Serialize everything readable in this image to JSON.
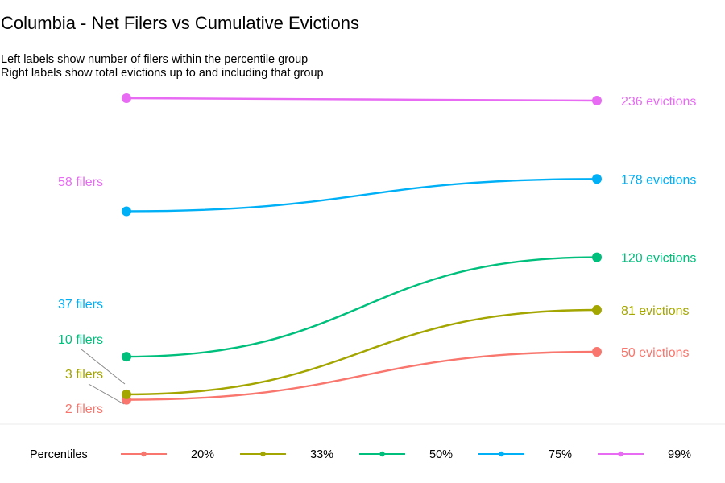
{
  "chart_data": {
    "type": "line",
    "title": "Columbia - Net Filers vs Cumulative Evictions",
    "subtitle": [
      "Left labels show number of filers within the percentile group",
      "Right labels show total evictions up to and including that group"
    ],
    "xlabel": "",
    "ylabel": "",
    "grid": false,
    "legend_position": "bottom",
    "legend_title": "Percentiles",
    "series": [
      {
        "name": "20%",
        "color": "#F8766D",
        "filers": 2,
        "evictions": 50,
        "left_label": "2 filers",
        "right_label": "50 evictions"
      },
      {
        "name": "33%",
        "color": "#A3A500",
        "filers": 3,
        "evictions": 81,
        "left_label": "3 filers",
        "right_label": "81 evictions"
      },
      {
        "name": "50%",
        "color": "#00BF7D",
        "filers": 10,
        "evictions": 120,
        "left_label": "10 filers",
        "right_label": "120 evictions"
      },
      {
        "name": "75%",
        "color": "#00B0F6",
        "filers": 37,
        "evictions": 178,
        "left_label": "37 filers",
        "right_label": "178 evictions"
      },
      {
        "name": "99%",
        "color": "#E76BF3",
        "filers": 58,
        "evictions": 236,
        "left_label": "58 filers",
        "right_label": "236 evictions"
      }
    ]
  }
}
